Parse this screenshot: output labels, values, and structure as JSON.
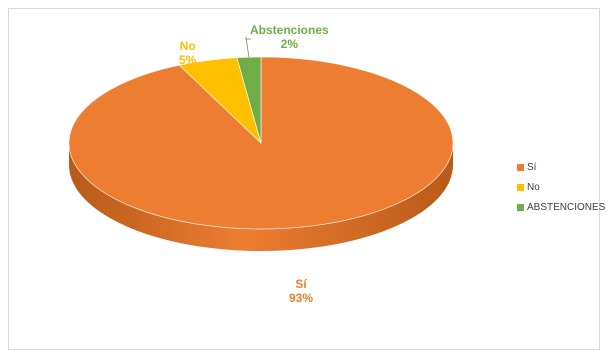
{
  "chart_data": {
    "type": "pie",
    "title": "",
    "categories": [
      "Sí",
      "No",
      "ABSTENCIONES"
    ],
    "values": [
      93,
      5,
      2
    ],
    "data_labels": [
      {
        "name": "Sí",
        "percent": "93%"
      },
      {
        "name": "No",
        "percent": "5%"
      },
      {
        "name": "Abstenciones",
        "percent": "2%"
      }
    ],
    "colors": [
      "#ED7D31",
      "#FFC000",
      "#70AD47"
    ],
    "side_colors": [
      "#B85A18",
      "#C99600",
      "#4E7F30"
    ],
    "label_colors": [
      "#ED7D31",
      "#FFC000",
      "#70AD47"
    ],
    "legend_placement": "right",
    "style": "3d"
  }
}
